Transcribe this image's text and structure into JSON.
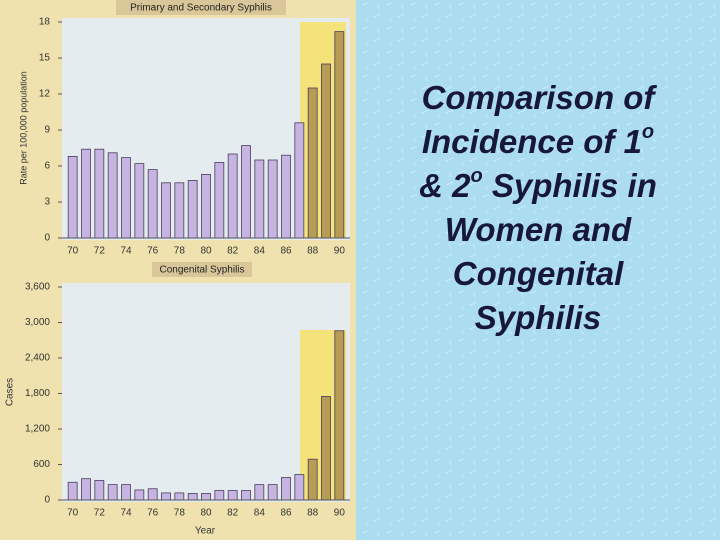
{
  "chart_data": [
    {
      "type": "bar",
      "title": "Primary and Secondary Syphilis",
      "ylabel": "Rate per 100,000 population",
      "categories": [
        "70",
        null,
        "72",
        null,
        "74",
        null,
        "76",
        null,
        "78",
        null,
        "80",
        null,
        "82",
        null,
        "84",
        null,
        "86",
        null,
        "88",
        null,
        "90"
      ],
      "values": [
        6.8,
        7.4,
        7.4,
        7.1,
        6.7,
        6.2,
        5.7,
        4.6,
        4.6,
        4.8,
        5.3,
        6.3,
        7.0,
        7.7,
        6.5,
        6.5,
        6.9,
        9.6,
        12.5,
        14.5,
        17.2
      ],
      "colors": [
        "#c8b4e2",
        "#c8b4e2",
        "#c8b4e2",
        "#c8b4e2",
        "#c8b4e2",
        "#c8b4e2",
        "#c8b4e2",
        "#c8b4e2",
        "#c8b4e2",
        "#c8b4e2",
        "#c8b4e2",
        "#c8b4e2",
        "#c8b4e2",
        "#c8b4e2",
        "#c8b4e2",
        "#c8b4e2",
        "#c8b4e2",
        "#c8b4e2",
        "#b79c55",
        "#b79c55",
        "#b79c55"
      ],
      "ylim": [
        0,
        18
      ],
      "yticks": [
        0,
        3,
        6,
        9,
        12,
        15,
        18
      ]
    },
    {
      "type": "bar",
      "title": "Congenital Syphilis",
      "ylabel": "Cases",
      "xlabel": "Year",
      "categories": [
        "70",
        null,
        "72",
        null,
        "74",
        null,
        "76",
        null,
        "78",
        null,
        "80",
        null,
        "82",
        null,
        "84",
        null,
        "86",
        null,
        "88",
        null,
        "90"
      ],
      "values": [
        300,
        360,
        330,
        260,
        260,
        170,
        190,
        120,
        120,
        110,
        110,
        160,
        160,
        160,
        260,
        260,
        380,
        430,
        690,
        1750,
        2860
      ],
      "colors": [
        "#c8b4e2",
        "#c8b4e2",
        "#c8b4e2",
        "#c8b4e2",
        "#c8b4e2",
        "#c8b4e2",
        "#c8b4e2",
        "#c8b4e2",
        "#c8b4e2",
        "#c8b4e2",
        "#c8b4e2",
        "#c8b4e2",
        "#c8b4e2",
        "#c8b4e2",
        "#c8b4e2",
        "#c8b4e2",
        "#c8b4e2",
        "#c8b4e2",
        "#b79c55",
        "#b79c55",
        "#b79c55"
      ],
      "ylim": [
        0,
        3600
      ],
      "yticks": [
        0,
        600,
        {
          "value": 1200,
          "label": "1,200"
        },
        {
          "value": 1800,
          "label": "1,800"
        },
        {
          "value": 2400,
          "label": "2,400"
        },
        {
          "value": 3000,
          "label": "3,000"
        },
        {
          "value": 3600,
          "label": "3,600"
        }
      ]
    }
  ],
  "slide": {
    "title_lines": [
      {
        "text": "Comparison of"
      },
      {
        "text": "Incidence of     1",
        "sup": "o"
      },
      {
        "text": "& 2",
        "sup": "o",
        "rest": " Syphilis in"
      },
      {
        "text": "Women and"
      },
      {
        "text": "Congenital"
      },
      {
        "text": "Syphilis"
      }
    ]
  }
}
